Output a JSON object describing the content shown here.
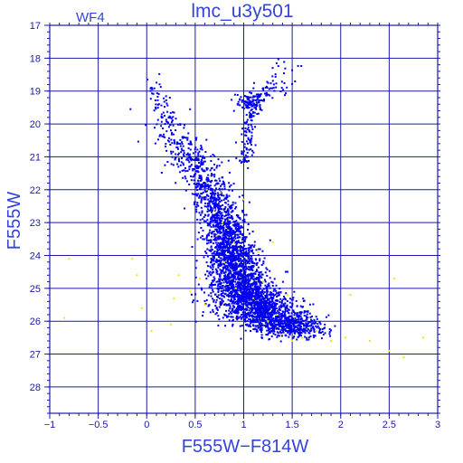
{
  "chart_data": {
    "type": "scatter",
    "title": "lmc_u3y501",
    "chip_label": "WF4",
    "xlabel": "F555W−F814W",
    "ylabel": "F555W",
    "xlim": [
      -1,
      3
    ],
    "ylim": [
      28.8,
      17
    ],
    "y_inverted": true,
    "grid": true,
    "xticks": [
      -1,
      -0.5,
      0,
      0.5,
      1,
      1.5,
      2,
      2.5,
      3
    ],
    "xtick_labels": [
      "−1",
      "−0.5",
      "0",
      "0.5",
      "1",
      "1.5",
      "2",
      "2.5",
      "3"
    ],
    "yticks": [
      17,
      18,
      19,
      20,
      21,
      22,
      23,
      24,
      25,
      26,
      27,
      28
    ],
    "ytick_labels": [
      "17",
      "18",
      "19",
      "20",
      "21",
      "22",
      "23",
      "24",
      "25",
      "26",
      "27",
      "28"
    ],
    "colors": {
      "frame": "#1a1aa6",
      "grid": "#1a1aa6",
      "text": "#3344dd",
      "stars": "#0000ee",
      "flagged": "#f2e600"
    },
    "series": [
      {
        "color": "#0000ee",
        "density_ridge": [
          {
            "y": 18.8,
            "x": 0.08,
            "sigma_x": 0.06,
            "weight": 0.35
          },
          {
            "y": 19.5,
            "x": 0.15,
            "sigma_x": 0.08,
            "weight": 0.6
          },
          {
            "y": 20.3,
            "x": 0.28,
            "sigma_x": 0.1,
            "weight": 1.2
          },
          {
            "y": 21.0,
            "x": 0.45,
            "sigma_x": 0.12,
            "weight": 2.0
          },
          {
            "y": 21.7,
            "x": 0.6,
            "sigma_x": 0.12,
            "weight": 2.6
          },
          {
            "y": 22.4,
            "x": 0.72,
            "sigma_x": 0.11,
            "weight": 3.5
          },
          {
            "y": 23.1,
            "x": 0.8,
            "sigma_x": 0.11,
            "weight": 5.0
          },
          {
            "y": 23.8,
            "x": 0.86,
            "sigma_x": 0.12,
            "weight": 7.0
          },
          {
            "y": 24.5,
            "x": 0.93,
            "sigma_x": 0.14,
            "weight": 9.0
          },
          {
            "y": 25.2,
            "x": 1.03,
            "sigma_x": 0.17,
            "weight": 11.0
          },
          {
            "y": 25.7,
            "x": 1.2,
            "sigma_x": 0.22,
            "weight": 10.0
          },
          {
            "y": 26.1,
            "x": 1.4,
            "sigma_x": 0.22,
            "weight": 6.5
          },
          {
            "y": 26.4,
            "x": 1.55,
            "sigma_x": 0.18,
            "weight": 3.0
          }
        ],
        "giant_branch": [
          {
            "x": 1.02,
            "y": 21.2,
            "sigma_x": 0.04,
            "weight": 0.9
          },
          {
            "x": 1.05,
            "y": 20.4,
            "sigma_x": 0.03,
            "weight": 0.7
          },
          {
            "x": 1.08,
            "y": 19.6,
            "sigma_x": 0.05,
            "weight": 0.8
          },
          {
            "x": 1.2,
            "y": 19.1,
            "sigma_x": 0.08,
            "weight": 0.6
          },
          {
            "x": 1.35,
            "y": 18.8,
            "sigma_x": 0.08,
            "weight": 0.4
          },
          {
            "x": 1.45,
            "y": 18.1,
            "sigma_x": 0.07,
            "weight": 0.2
          }
        ],
        "red_clump": {
          "x": 1.05,
          "y": 19.3,
          "sigma_x": 0.06,
          "sigma_y": 0.15,
          "weight": 1.2
        }
      },
      {
        "color": "#f2e600",
        "points": [
          [
            -0.8,
            24.1
          ],
          [
            -0.15,
            24.1
          ],
          [
            -0.1,
            24.6
          ],
          [
            -0.85,
            25.9
          ],
          [
            -0.05,
            25.6
          ],
          [
            0.05,
            26.3
          ],
          [
            0.25,
            26.1
          ],
          [
            0.28,
            25.3
          ],
          [
            0.33,
            24.6
          ],
          [
            0.45,
            25.1
          ],
          [
            0.55,
            24.7
          ],
          [
            0.6,
            25.5
          ],
          [
            0.62,
            22.0
          ],
          [
            0.7,
            22.6
          ],
          [
            0.72,
            23.4
          ],
          [
            0.76,
            22.1
          ],
          [
            0.78,
            23.0
          ],
          [
            0.8,
            24.2
          ],
          [
            0.85,
            22.9
          ],
          [
            0.9,
            23.6
          ],
          [
            0.92,
            25.0
          ],
          [
            0.95,
            23.8
          ],
          [
            1.0,
            22.3
          ],
          [
            1.1,
            25.3
          ],
          [
            1.15,
            23.9
          ],
          [
            1.2,
            24.8
          ],
          [
            1.25,
            26.0
          ],
          [
            1.3,
            23.6
          ],
          [
            1.35,
            25.8
          ],
          [
            1.4,
            26.4
          ],
          [
            1.45,
            25.2
          ],
          [
            1.5,
            26.6
          ],
          [
            1.6,
            26.5
          ],
          [
            1.75,
            26.3
          ],
          [
            1.9,
            26.6
          ],
          [
            2.05,
            26.5
          ],
          [
            2.1,
            25.2
          ],
          [
            2.3,
            26.6
          ],
          [
            2.5,
            26.9
          ],
          [
            2.65,
            27.1
          ],
          [
            2.85,
            26.5
          ],
          [
            2.55,
            24.7
          ]
        ]
      }
    ]
  }
}
